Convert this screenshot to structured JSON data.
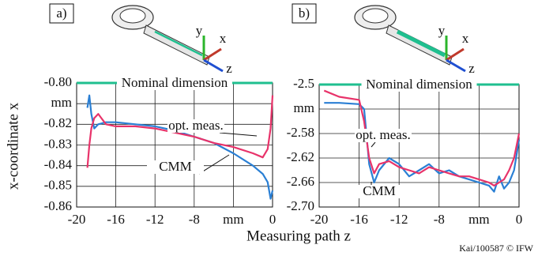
{
  "figure": {
    "ylabel": "x-coordinate x",
    "xlabel": "Measuring path z",
    "credit": "Kai/100587 © IFW"
  },
  "chart_data": [
    {
      "type": "line",
      "label": "a)",
      "icon_axes": [
        "y",
        "x",
        "z"
      ],
      "nominal": -0.8,
      "nominal_label": "Nominal dimension",
      "nominal_color": "#1fbf8f",
      "xlim": [
        -20,
        0
      ],
      "xticks": [
        -20,
        -16,
        -12,
        -8,
        {
          "value": -4,
          "label": "mm"
        },
        0
      ],
      "ylim": [
        -0.86,
        -0.8
      ],
      "yticks": [
        {
          "value": -0.8,
          "label": "-0.80"
        },
        {
          "value": -0.81,
          "label": "mm"
        },
        -0.82,
        -0.83,
        -0.84,
        -0.85,
        -0.86
      ],
      "grid": true,
      "x": [
        -18.9,
        -18.7,
        -18.5,
        -18.2,
        -17.8,
        -17,
        -16,
        -14,
        -12,
        -10,
        -8,
        -6,
        -4,
        -2,
        -1,
        -0.5,
        -0.2,
        0
      ],
      "series": [
        {
          "name": "CMM",
          "color": "#2a7fd4",
          "values": [
            -0.812,
            -0.806,
            -0.815,
            -0.822,
            -0.82,
            -0.819,
            -0.819,
            -0.82,
            -0.821,
            -0.823,
            -0.826,
            -0.829,
            -0.834,
            -0.84,
            -0.844,
            -0.848,
            -0.856,
            -0.852
          ]
        },
        {
          "name": "opt. meas.",
          "color": "#e8336a",
          "values": [
            -0.841,
            -0.83,
            -0.822,
            -0.817,
            -0.815,
            -0.82,
            -0.821,
            -0.821,
            -0.822,
            -0.824,
            -0.826,
            -0.829,
            -0.831,
            -0.834,
            -0.836,
            -0.832,
            -0.822,
            -0.806
          ]
        }
      ]
    },
    {
      "type": "line",
      "label": "b)",
      "icon_axes": [
        "y",
        "x",
        "z"
      ],
      "nominal": -2.5,
      "nominal_label": "Nominal dimension",
      "nominal_color": "#1fbf8f",
      "xlim": [
        -20,
        0
      ],
      "xticks": [
        -20,
        -16,
        -12,
        -8,
        {
          "value": -4,
          "label": "mm"
        },
        0
      ],
      "ylim": [
        -2.7,
        -2.5
      ],
      "yticks": [
        -2.5,
        {
          "value": -2.54,
          "label": "mm"
        },
        -2.58,
        -2.62,
        -2.66,
        {
          "value": -2.7,
          "label": "-2.70"
        }
      ],
      "grid": true,
      "x": [
        -19.5,
        -18,
        -16,
        -15.5,
        -15,
        -14.5,
        -14,
        -13,
        -12,
        -11,
        -10,
        -9,
        -8,
        -7,
        -6,
        -5,
        -4,
        -3,
        -2.5,
        -2,
        -1.5,
        -1,
        -0.5,
        0
      ],
      "series": [
        {
          "name": "CMM",
          "color": "#2a7fd4",
          "values": [
            -2.53,
            -2.53,
            -2.532,
            -2.54,
            -2.63,
            -2.66,
            -2.64,
            -2.62,
            -2.63,
            -2.65,
            -2.64,
            -2.63,
            -2.645,
            -2.64,
            -2.65,
            -2.655,
            -2.66,
            -2.665,
            -2.675,
            -2.65,
            -2.67,
            -2.66,
            -2.64,
            -2.59
          ]
        },
        {
          "name": "opt. meas.",
          "color": "#e8336a",
          "values": [
            -2.51,
            -2.52,
            -2.525,
            -2.56,
            -2.62,
            -2.645,
            -2.63,
            -2.625,
            -2.635,
            -2.64,
            -2.645,
            -2.635,
            -2.64,
            -2.645,
            -2.65,
            -2.65,
            -2.655,
            -2.66,
            -2.665,
            -2.66,
            -2.655,
            -2.64,
            -2.62,
            -2.58
          ]
        }
      ]
    }
  ]
}
